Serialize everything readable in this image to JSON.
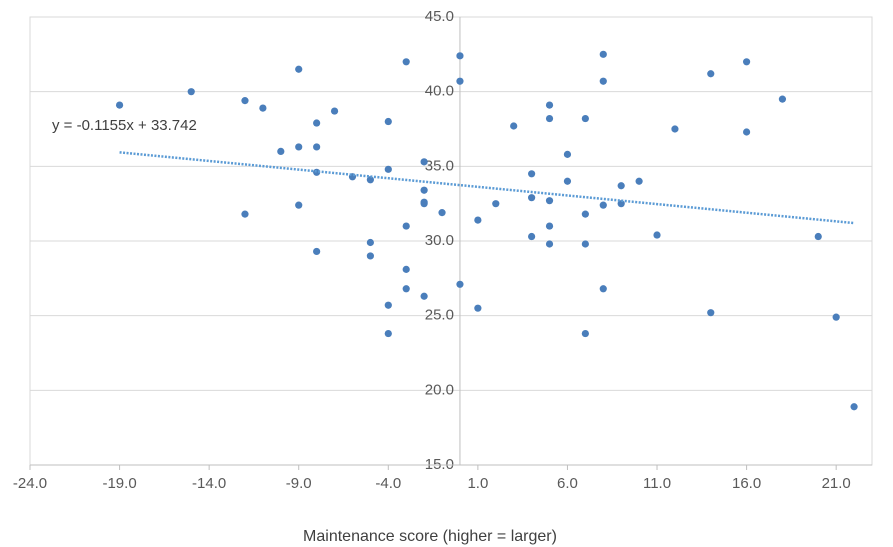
{
  "chart_data": {
    "type": "scatter",
    "x_label": "Maintenance score (higher = larger)",
    "series": [
      {
        "color": "#4a7ebb",
        "x": [
          -19,
          -15,
          -12,
          -11,
          -9,
          -9,
          -9,
          -10,
          -12,
          -8,
          -8,
          -8,
          -8,
          -7,
          -6,
          -5,
          -5,
          -5,
          -4,
          -4,
          -4,
          -4,
          -3,
          -3,
          -3,
          -3,
          -2,
          -2,
          -2,
          -2,
          -2,
          -1,
          0,
          0,
          0,
          1,
          1,
          2,
          3,
          4,
          4,
          4,
          5,
          5,
          5,
          5,
          5,
          6,
          6,
          7,
          7,
          7,
          7,
          8,
          8,
          8,
          8,
          9,
          9,
          10,
          11,
          12,
          14,
          14,
          16,
          16,
          18,
          20,
          21,
          22
        ],
        "values": [
          39.1,
          40.0,
          39.4,
          38.9,
          41.5,
          36.3,
          32.4,
          36.0,
          31.8,
          37.9,
          36.3,
          34.6,
          29.3,
          38.7,
          34.3,
          34.1,
          29.9,
          29.0,
          38.0,
          34.8,
          25.7,
          23.8,
          42.0,
          31.0,
          28.1,
          26.8,
          35.3,
          33.4,
          32.6,
          32.5,
          26.3,
          31.9,
          42.4,
          40.7,
          27.1,
          31.4,
          25.5,
          32.5,
          37.7,
          34.5,
          32.9,
          30.3,
          39.1,
          38.2,
          32.7,
          31.0,
          29.8,
          35.8,
          34.0,
          38.2,
          31.8,
          29.8,
          23.8,
          42.5,
          40.7,
          32.4,
          26.8,
          33.7,
          32.5,
          34.0,
          30.4,
          37.5,
          41.2,
          25.2,
          42.0,
          37.3,
          39.5,
          30.3,
          24.9,
          18.9
        ]
      }
    ],
    "trendline": {
      "slope": -0.1155,
      "intercept": 33.742,
      "label": "y = -0.1155x + 33.742",
      "color": "#5b9bd5"
    },
    "xlim": [
      -24,
      23
    ],
    "ylim": [
      15,
      45
    ],
    "xticks": [
      {
        "value": -24,
        "label": "-24.0"
      },
      {
        "value": -19,
        "label": "-19.0"
      },
      {
        "value": -14,
        "label": "-14.0"
      },
      {
        "value": -9,
        "label": "-9.0"
      },
      {
        "value": -4,
        "label": "-4.0"
      },
      {
        "value": 1,
        "label": "1.0"
      },
      {
        "value": 6,
        "label": "6.0"
      },
      {
        "value": 11,
        "label": "11.0"
      },
      {
        "value": 16,
        "label": "16.0"
      },
      {
        "value": 21,
        "label": "21.0"
      }
    ],
    "yticks": [
      {
        "value": 15,
        "label": "15.0"
      },
      {
        "value": 20,
        "label": "20.0"
      },
      {
        "value": 25,
        "label": "25.0"
      },
      {
        "value": 30,
        "label": "30.0"
      },
      {
        "value": 35,
        "label": "35.0"
      },
      {
        "value": 40,
        "label": "40.0"
      },
      {
        "value": 45,
        "label": "45.0"
      }
    ],
    "grid": true
  }
}
